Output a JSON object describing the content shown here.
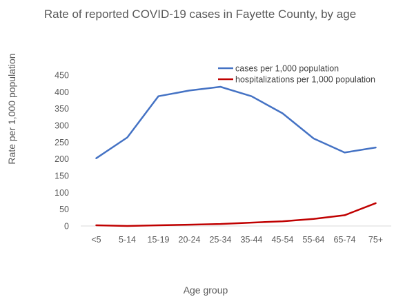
{
  "chart_data": {
    "type": "line",
    "title": "Rate of reported COVID-19 cases in Fayette County, by age",
    "xlabel": "Age group",
    "ylabel": "Rate per 1,000 population",
    "categories": [
      "<5",
      "5-14",
      "15-19",
      "20-24",
      "25-34",
      "35-44",
      "45-54",
      "55-64",
      "65-74",
      "75+"
    ],
    "ylim": [
      0,
      450
    ],
    "yticks": [
      0,
      50,
      100,
      150,
      200,
      250,
      300,
      350,
      400,
      450
    ],
    "grid": false,
    "legend_position": "top-right",
    "series": [
      {
        "name": "cases per 1,000 population",
        "color": "#4472C4",
        "values": [
          202,
          264,
          387,
          404,
          415,
          387,
          336,
          261,
          219,
          234
        ]
      },
      {
        "name": "hospitalizations per 1,000 population",
        "color": "#C00000",
        "values": [
          2,
          0,
          2,
          4,
          6,
          10,
          14,
          21,
          32,
          68
        ]
      }
    ]
  }
}
